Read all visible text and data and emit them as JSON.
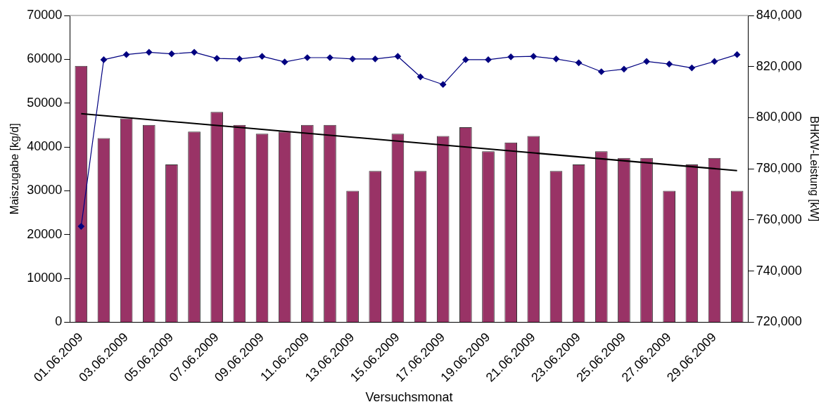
{
  "chart_data": {
    "type": "bar",
    "xlabel": "Versuchsmonat",
    "ylabel": "Maiszugabe [kg/d]",
    "y2label": "BHKW-Leistung [kW]",
    "categories": [
      "01.06.2009",
      null,
      "03.06.2009",
      null,
      "05.06.2009",
      null,
      "07.06.2009",
      null,
      "09.06.2009",
      null,
      "11.06.2009",
      null,
      "13.06.2009",
      null,
      "15.06.2009",
      null,
      "17.06.2009",
      null,
      "19.06.2009",
      null,
      "21.06.2009",
      null,
      "23.06.2009",
      null,
      "25.06.2009",
      null,
      "27.06.2009",
      null,
      "29.06.2009",
      null
    ],
    "series": [
      {
        "color": "#993366",
        "values": [
          58500,
          42000,
          46500,
          45000,
          36000,
          43500,
          48000,
          45000,
          43000,
          43500,
          45000,
          45000,
          30000,
          34500,
          43000,
          34500,
          42500,
          44500,
          39000,
          41000,
          42500,
          34500,
          36000,
          39000,
          37500,
          37500,
          30000,
          36000,
          37500,
          30000
        ]
      },
      {
        "type": "line",
        "axis": "y2",
        "color": "#000080",
        "marker": "diamond",
        "values": [
          757500,
          822700,
          824700,
          825600,
          825000,
          825600,
          823200,
          823000,
          824000,
          821800,
          823500,
          823500,
          823000,
          823000,
          824000,
          816000,
          813000,
          822700,
          822700,
          823800,
          824000,
          823000,
          821500,
          818000,
          819000,
          822000,
          821000,
          819500,
          822000,
          824700
        ]
      },
      {
        "type": "line",
        "color": "#000000",
        "marker": "none",
        "values": [
          47600,
          null,
          null,
          null,
          null,
          null,
          null,
          null,
          null,
          null,
          null,
          null,
          null,
          null,
          null,
          null,
          null,
          null,
          null,
          null,
          null,
          null,
          null,
          null,
          null,
          null,
          null,
          null,
          null,
          34600
        ]
      }
    ],
    "ylim": [
      0,
      70000
    ],
    "yticks": [
      0,
      10000,
      20000,
      30000,
      40000,
      50000,
      60000,
      70000
    ],
    "y2lim": [
      720000,
      840000
    ],
    "y2ticks": [
      {
        "value": 720000,
        "label": "720,000"
      },
      {
        "value": 740000,
        "label": "740,000"
      },
      {
        "value": 760000,
        "label": "760,000"
      },
      {
        "value": 780000,
        "label": "780,000"
      },
      {
        "value": 800000,
        "label": "800,000"
      },
      {
        "value": 820000,
        "label": "820,000"
      },
      {
        "value": 840000,
        "label": "840,000"
      }
    ],
    "grid": false,
    "legend": false
  }
}
